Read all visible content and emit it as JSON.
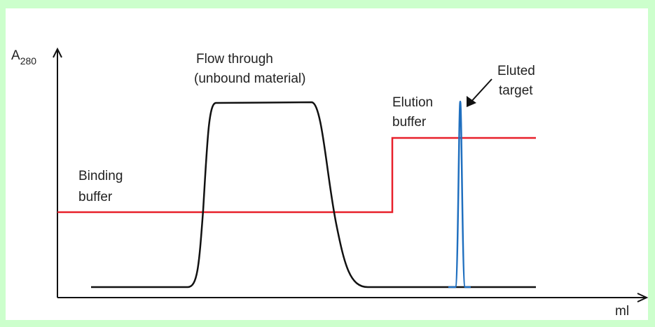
{
  "axes": {
    "y_label": "A",
    "y_label_sub": "280",
    "x_label": "ml"
  },
  "labels": {
    "flow_through": [
      "Flow through",
      "(unbound material)"
    ],
    "eluted_target": [
      "Eluted",
      "target"
    ],
    "elution_buffer": [
      "Elution",
      "buffer"
    ],
    "binding_buffer": [
      "Binding",
      "buffer"
    ]
  }
}
